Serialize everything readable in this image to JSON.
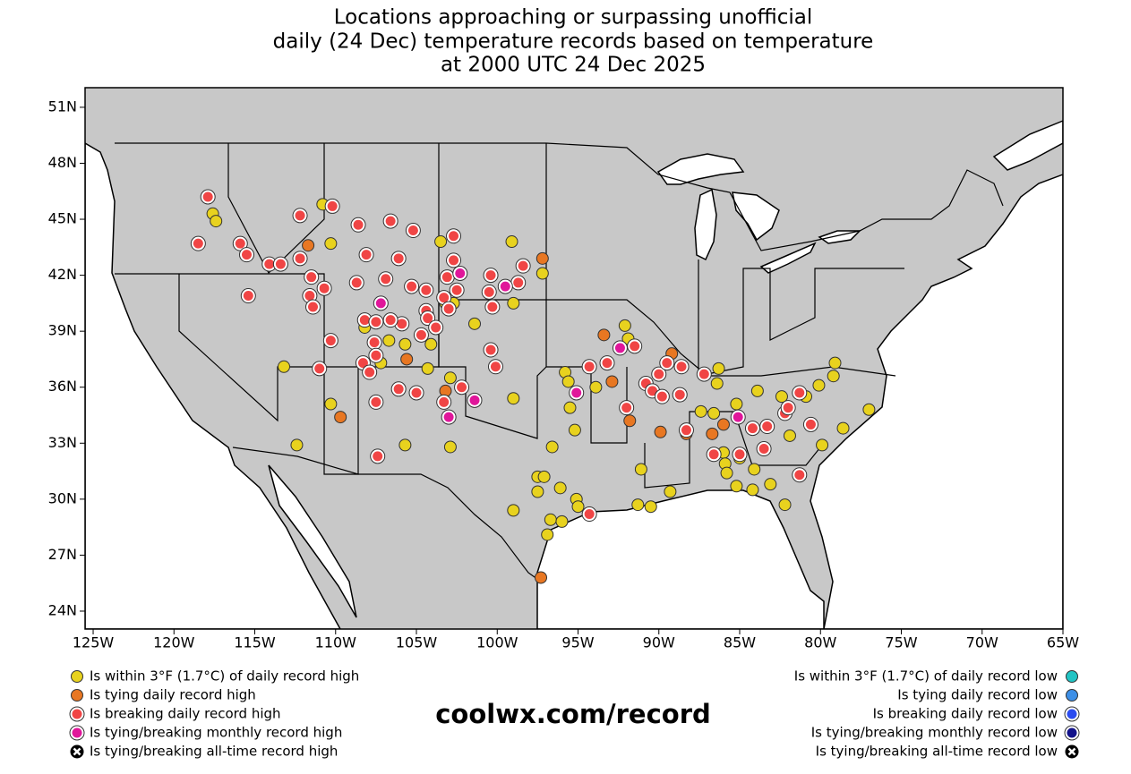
{
  "chart_data": {
    "type": "scatter",
    "title": [
      "Locations approaching or surpassing unofficial",
      "daily (24 Dec) temperature records based on temperature",
      "at 2000 UTC 24 Dec 2025"
    ],
    "source": "coolwx.com/record",
    "xlim": [
      -125.5,
      -65
    ],
    "ylim": [
      23.04,
      52.05
    ],
    "xticks": [
      {
        "value": -125,
        "label": "125W"
      },
      {
        "value": -120,
        "label": "120W"
      },
      {
        "value": -115,
        "label": "115W"
      },
      {
        "value": -110,
        "label": "110W"
      },
      {
        "value": -105,
        "label": "105W"
      },
      {
        "value": -100,
        "label": "100W"
      },
      {
        "value": -95,
        "label": "95W"
      },
      {
        "value": -90,
        "label": "90W"
      },
      {
        "value": -85,
        "label": "85W"
      },
      {
        "value": -80,
        "label": "80W"
      },
      {
        "value": -75,
        "label": "75W"
      },
      {
        "value": -70,
        "label": "70W"
      },
      {
        "value": -65,
        "label": "65W"
      }
    ],
    "yticks": [
      {
        "value": 24,
        "label": "24N"
      },
      {
        "value": 27,
        "label": "27N"
      },
      {
        "value": 30,
        "label": "30N"
      },
      {
        "value": 33,
        "label": "33N"
      },
      {
        "value": 36,
        "label": "36N"
      },
      {
        "value": 39,
        "label": "39N"
      },
      {
        "value": 42,
        "label": "42N"
      },
      {
        "value": 45,
        "label": "45N"
      },
      {
        "value": 48,
        "label": "48N"
      },
      {
        "value": 51,
        "label": "51N"
      }
    ],
    "series": [
      {
        "name": "Is within 3°F (1.7°C) of daily record high",
        "color": "#e8d21e",
        "x": [
          -117.6,
          -117.4,
          -110.8,
          -110.3,
          -103.5,
          -99.1,
          -97.2,
          -103.2,
          -102.7,
          -101.4,
          -99.0,
          -108.2,
          -106.7,
          -105.7,
          -104.1,
          -104.3,
          -107.2,
          -113.2,
          -110.3,
          -112.4,
          -105.7,
          -102.9,
          -102.9,
          -99.0,
          -95.8,
          -95.6,
          -93.9,
          -95.5,
          -96.6,
          -95.2,
          -97.5,
          -97.1,
          -97.5,
          -96.1,
          -95.1,
          -95.0,
          -99.0,
          -96.7,
          -96.0,
          -96.9,
          -92.1,
          -91.9,
          -91.1,
          -91.3,
          -90.5,
          -89.3,
          -87.4,
          -86.6,
          -86.4,
          -86.3,
          -85.2,
          -83.9,
          -86.0,
          -85.9,
          -85.0,
          -85.8,
          -85.2,
          -84.1,
          -84.2,
          -83.1,
          -82.2,
          -81.9,
          -82.4,
          -80.9,
          -80.1,
          -79.2,
          -79.1,
          -79.9,
          -78.6,
          -77.0
        ],
        "y": [
          45.3,
          44.9,
          45.8,
          43.7,
          43.8,
          43.8,
          42.1,
          40.5,
          40.5,
          39.4,
          40.5,
          39.2,
          38.5,
          38.3,
          38.3,
          37.0,
          37.3,
          37.1,
          35.1,
          32.9,
          32.9,
          32.8,
          36.5,
          35.4,
          36.8,
          36.3,
          36.0,
          34.9,
          32.8,
          33.7,
          31.2,
          31.2,
          30.4,
          30.6,
          30.0,
          29.6,
          29.4,
          28.9,
          28.8,
          28.1,
          39.3,
          38.6,
          31.6,
          29.7,
          29.6,
          30.4,
          34.7,
          34.6,
          36.2,
          37.0,
          35.1,
          35.8,
          32.5,
          31.9,
          32.2,
          31.4,
          30.7,
          31.6,
          30.5,
          30.8,
          29.7,
          33.4,
          35.5,
          35.5,
          36.1,
          36.6,
          37.3,
          32.9,
          33.8,
          34.8
        ]
      },
      {
        "name": "Is tying daily record high",
        "color": "#e87722",
        "x": [
          -111.7,
          -97.2,
          -104.3,
          -103.2,
          -105.6,
          -109.7,
          -93.4,
          -92.9,
          -91.8,
          -89.9,
          -89.2,
          -88.3,
          -86.7,
          -86.0,
          -97.3
        ],
        "y": [
          43.6,
          42.9,
          39.9,
          35.8,
          37.5,
          34.4,
          38.8,
          36.3,
          34.2,
          33.6,
          37.8,
          33.5,
          33.5,
          34.0,
          25.8
        ]
      },
      {
        "name": "Is breaking daily record high",
        "color": "#f04545",
        "x": [
          -117.9,
          -118.5,
          -115.9,
          -115.5,
          -115.4,
          -114.1,
          -113.4,
          -112.2,
          -112.2,
          -111.5,
          -111.6,
          -111.4,
          -110.7,
          -110.3,
          -111.0,
          -110.2,
          -108.6,
          -108.1,
          -108.7,
          -106.6,
          -105.2,
          -106.1,
          -106.9,
          -108.2,
          -107.5,
          -107.6,
          -107.5,
          -108.3,
          -107.9,
          -105.9,
          -106.6,
          -105.3,
          -104.4,
          -104.4,
          -104.7,
          -104.3,
          -103.3,
          -103.8,
          -103.0,
          -103.1,
          -102.5,
          -102.7,
          -102.7,
          -100.5,
          -100.3,
          -100.4,
          -98.7,
          -98.4,
          -100.1,
          -100.4,
          -102.2,
          -103.3,
          -106.1,
          -105.0,
          -107.5,
          -107.4,
          -94.3,
          -93.2,
          -91.5,
          -92.0,
          -90.8,
          -90.0,
          -90.4,
          -89.8,
          -89.5,
          -88.7,
          -88.6,
          -88.3,
          -87.2,
          -86.6,
          -85.0,
          -84.2,
          -83.3,
          -83.5,
          -82.2,
          -81.3,
          -82.0,
          -80.6,
          -81.3,
          -94.3
        ],
        "y": [
          46.2,
          43.7,
          43.7,
          43.1,
          40.9,
          42.6,
          42.6,
          45.2,
          42.9,
          41.9,
          40.9,
          40.3,
          41.3,
          38.5,
          37.0,
          45.7,
          44.7,
          43.1,
          41.6,
          44.9,
          44.4,
          42.9,
          41.8,
          39.6,
          39.5,
          38.4,
          37.7,
          37.3,
          36.8,
          39.4,
          39.6,
          41.4,
          41.2,
          40.1,
          38.8,
          39.7,
          40.8,
          39.2,
          40.2,
          41.9,
          41.2,
          44.1,
          42.8,
          41.1,
          40.3,
          42.0,
          41.6,
          42.5,
          37.1,
          38.0,
          36.0,
          35.2,
          35.9,
          35.7,
          35.2,
          32.3,
          37.1,
          37.3,
          38.2,
          34.9,
          36.2,
          36.7,
          35.8,
          35.5,
          37.3,
          35.6,
          37.1,
          33.7,
          36.7,
          32.4,
          32.4,
          33.8,
          33.9,
          32.7,
          34.6,
          35.7,
          34.9,
          34.0,
          31.3,
          29.2
        ]
      },
      {
        "name": "Is tying/breaking monthly record high",
        "color": "#e0169a",
        "x": [
          -107.2,
          -103.0,
          -101.4,
          -95.1,
          -92.4,
          -85.1,
          -102.3,
          -99.5
        ],
        "y": [
          40.5,
          34.4,
          35.3,
          35.7,
          38.1,
          34.4,
          42.1,
          41.4
        ]
      },
      {
        "name": "Is tying/breaking all-time record high",
        "color": "#ffffff",
        "x": [],
        "y": []
      },
      {
        "name": "Is within 3°F (1.7°C) of daily record low",
        "color": "#22c4c4",
        "x": [],
        "y": []
      },
      {
        "name": "Is tying daily record low",
        "color": "#3d8fe6",
        "x": [],
        "y": []
      },
      {
        "name": "Is breaking daily record low",
        "color": "#2b4cf0",
        "x": [],
        "y": []
      },
      {
        "name": "Is tying/breaking monthly record low",
        "color": "#12128a",
        "x": [],
        "y": []
      },
      {
        "name": "Is tying/breaking all-time record low",
        "color": "#ffffff",
        "x": [],
        "y": []
      }
    ]
  }
}
